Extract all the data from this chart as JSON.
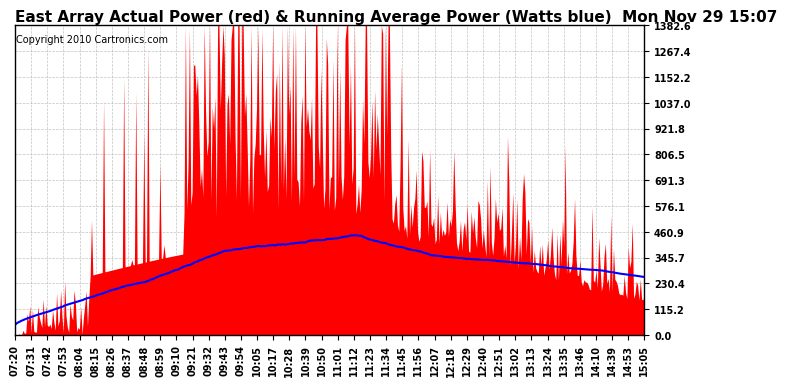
{
  "title": "East Array Actual Power (red) & Running Average Power (Watts blue)  Mon Nov 29 15:07",
  "copyright": "Copyright 2010 Cartronics.com",
  "yticks": [
    0.0,
    115.2,
    230.4,
    345.7,
    460.9,
    576.1,
    691.3,
    806.5,
    921.8,
    1037.0,
    1152.2,
    1267.4,
    1382.6
  ],
  "ylim": [
    0,
    1382.6
  ],
  "background_color": "#ffffff",
  "fill_color": "#ff0000",
  "line_color": "#0000ff",
  "grid_color": "#aaaaaa",
  "xtick_labels": [
    "07:20",
    "07:31",
    "07:42",
    "07:53",
    "08:04",
    "08:15",
    "08:26",
    "08:37",
    "08:48",
    "08:59",
    "09:10",
    "09:21",
    "09:32",
    "09:43",
    "09:54",
    "10:05",
    "10:17",
    "10:28",
    "10:39",
    "10:50",
    "11:01",
    "11:12",
    "11:23",
    "11:34",
    "11:45",
    "11:56",
    "12:07",
    "12:18",
    "12:29",
    "12:40",
    "12:51",
    "13:02",
    "13:13",
    "13:24",
    "13:35",
    "13:46",
    "14:10",
    "14:39",
    "14:53",
    "15:05"
  ],
  "title_fontsize": 11,
  "copyright_fontsize": 7,
  "tick_fontsize": 7
}
